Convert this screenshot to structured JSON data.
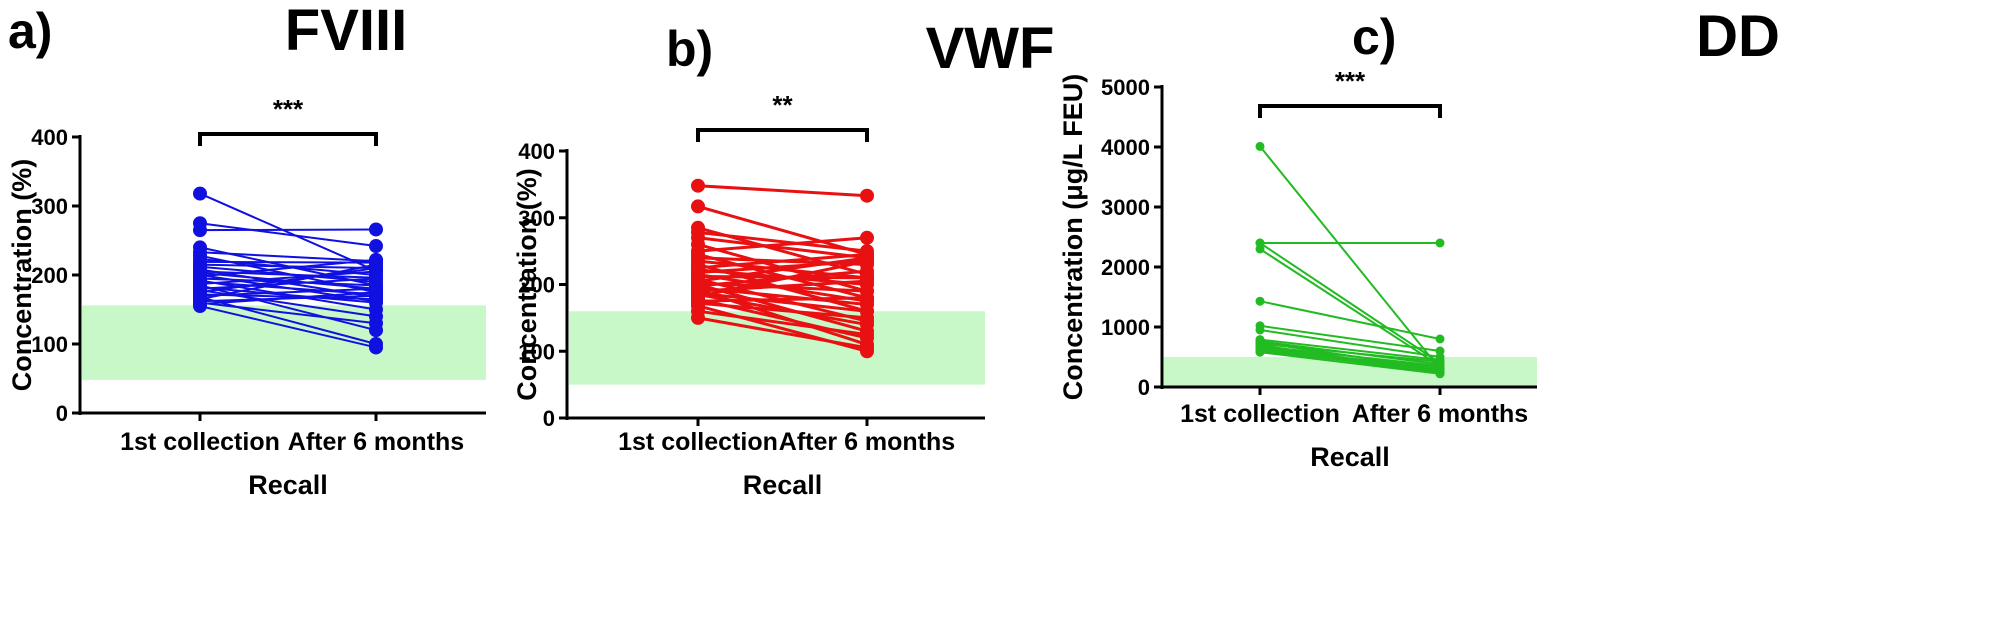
{
  "panels": [
    {
      "letter": "a)",
      "chart_data": {
        "type": "line",
        "title": "FVIII",
        "xlabel": "Recall",
        "ylabel": "Concentration (%)",
        "categories": [
          "1st collection",
          "After 6 months"
        ],
        "ylim": [
          0,
          400
        ],
        "yticks": [
          0,
          100,
          200,
          300,
          400
        ],
        "color": "#1010e0",
        "reference_range": [
          48,
          156
        ],
        "reference_color": "#c8f8c8",
        "significance": "***",
        "pairs": [
          [
            318,
            206
          ],
          [
            275,
            242
          ],
          [
            265,
            266
          ],
          [
            240,
            185
          ],
          [
            233,
            220
          ],
          [
            228,
            175
          ],
          [
            223,
            200
          ],
          [
            219,
            218
          ],
          [
            215,
            210
          ],
          [
            212,
            190
          ],
          [
            208,
            168
          ],
          [
            205,
            196
          ],
          [
            203,
            180
          ],
          [
            200,
            162
          ],
          [
            198,
            222
          ],
          [
            195,
            185
          ],
          [
            192,
            150
          ],
          [
            190,
            172
          ],
          [
            187,
            205
          ],
          [
            185,
            120
          ],
          [
            182,
            160
          ],
          [
            180,
            195
          ],
          [
            178,
            140
          ],
          [
            175,
            210
          ],
          [
            172,
            165
          ],
          [
            170,
            180
          ],
          [
            168,
            100
          ],
          [
            165,
            215
          ],
          [
            162,
            170
          ],
          [
            160,
            130
          ],
          [
            158,
            175
          ],
          [
            155,
            95
          ]
        ]
      }
    },
    {
      "letter": "b)",
      "chart_data": {
        "type": "line",
        "title": "VWF",
        "xlabel": "Recall",
        "ylabel": "Concentration (%)",
        "categories": [
          "1st collection",
          "After 6 months"
        ],
        "ylim": [
          0,
          400
        ],
        "yticks": [
          0,
          100,
          200,
          300,
          400
        ],
        "color": "#e81010",
        "reference_range": [
          50,
          160
        ],
        "reference_color": "#c8f8c8",
        "significance": "**",
        "pairs": [
          [
            348,
            333
          ],
          [
            317,
            245
          ],
          [
            285,
            215
          ],
          [
            278,
            250
          ],
          [
            270,
            240
          ],
          [
            260,
            190
          ],
          [
            250,
            270
          ],
          [
            245,
            180
          ],
          [
            240,
            230
          ],
          [
            235,
            210
          ],
          [
            230,
            160
          ],
          [
            225,
            245
          ],
          [
            222,
            200
          ],
          [
            218,
            235
          ],
          [
            215,
            175
          ],
          [
            212,
            210
          ],
          [
            208,
            145
          ],
          [
            205,
            240
          ],
          [
            202,
            190
          ],
          [
            200,
            130
          ],
          [
            198,
            220
          ],
          [
            195,
            170
          ],
          [
            192,
            110
          ],
          [
            190,
            205
          ],
          [
            187,
            160
          ],
          [
            185,
            140
          ],
          [
            182,
            235
          ],
          [
            178,
            120
          ],
          [
            175,
            180
          ],
          [
            172,
            150
          ],
          [
            168,
            100
          ],
          [
            160,
            125
          ],
          [
            150,
            105
          ]
        ]
      }
    },
    {
      "letter": "c)",
      "chart_data": {
        "type": "line",
        "title": "DD",
        "xlabel": "Recall",
        "ylabel": "Concentration (μg/L FEU)",
        "categories": [
          "1st collection",
          "After 6 months"
        ],
        "ylim": [
          0,
          5000
        ],
        "yticks": [
          0,
          1000,
          2000,
          3000,
          4000,
          5000
        ],
        "color": "#22bb22",
        "reference_range": [
          0,
          500
        ],
        "reference_color": "#c8f8c8",
        "significance": "***",
        "pairs": [
          [
            4010,
            300
          ],
          [
            2400,
            2400
          ],
          [
            2400,
            400
          ],
          [
            2300,
            350
          ],
          [
            1430,
            800
          ],
          [
            1020,
            600
          ],
          [
            950,
            500
          ],
          [
            790,
            450
          ],
          [
            760,
            380
          ],
          [
            740,
            300
          ],
          [
            720,
            420
          ],
          [
            700,
            250
          ],
          [
            680,
            350
          ],
          [
            660,
            280
          ],
          [
            640,
            230
          ],
          [
            620,
            330
          ],
          [
            600,
            270
          ],
          [
            590,
            310
          ],
          [
            580,
            220
          ]
        ]
      }
    }
  ]
}
